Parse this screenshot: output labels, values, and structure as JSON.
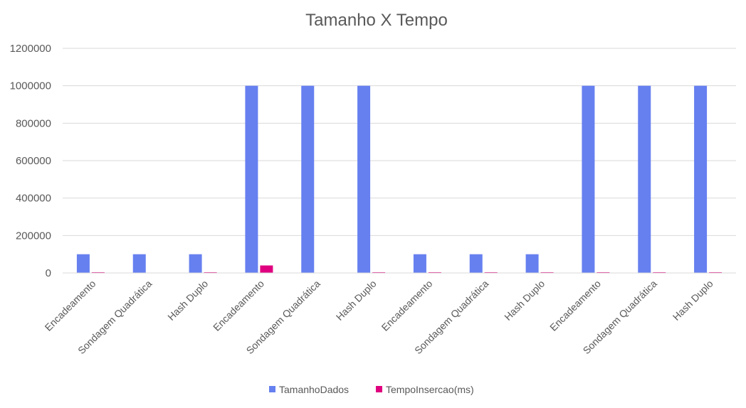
{
  "chart_data": {
    "type": "bar",
    "title": "Tamanho X Tempo",
    "xlabel": "",
    "ylabel": "",
    "ylim": [
      0,
      1200000
    ],
    "yticks": [
      0,
      200000,
      400000,
      600000,
      800000,
      1000000,
      1200000
    ],
    "grid": true,
    "legend_position": "bottom",
    "categories": [
      "Encadeamento",
      "Sondagem Quadrática",
      "Hash Duplo",
      "Encadeamento",
      "Sondagem Quadrática",
      "Hash Duplo",
      "Encadeamento",
      "Sondagem Quadrática",
      "Hash Duplo",
      "Encadeamento",
      "Sondagem Quadrática",
      "Hash Duplo"
    ],
    "series": [
      {
        "name": "TamanhoDados",
        "color": "#6680f0",
        "values": [
          100000,
          100000,
          100000,
          1000000,
          1000000,
          1000000,
          100000,
          100000,
          100000,
          1000000,
          1000000,
          1000000
        ]
      },
      {
        "name": "TempoInsercao(ms)",
        "color": "#e0007f",
        "values": [
          4000,
          0,
          4000,
          40000,
          0,
          4000,
          4000,
          4000,
          4000,
          4000,
          4000,
          4000
        ]
      }
    ]
  }
}
